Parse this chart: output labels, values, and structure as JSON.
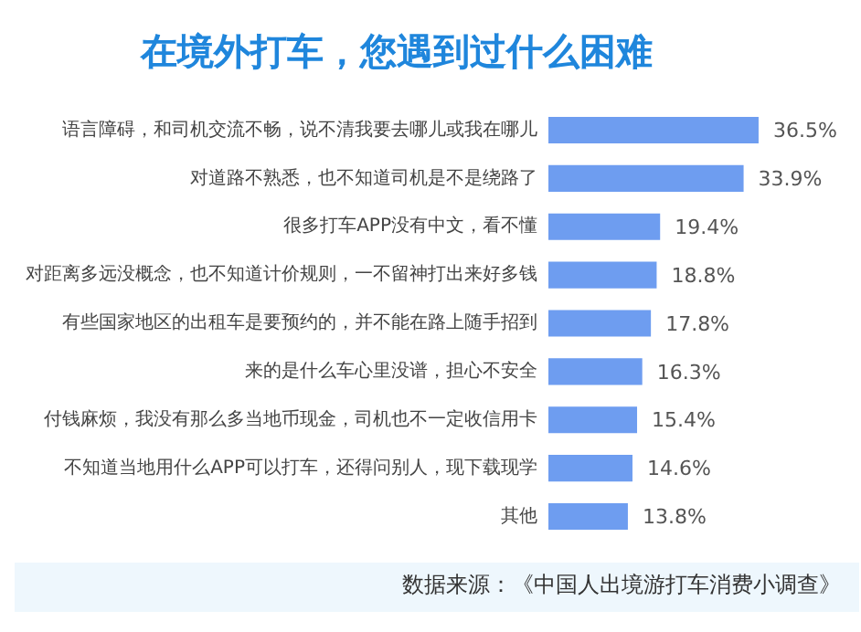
{
  "chart_data": {
    "type": "bar",
    "orientation": "horizontal",
    "title": "在境外打车，您遇到过什么困难",
    "categories": [
      "语言障碍，和司机交流不畅，说不清我要去哪儿或我在哪儿",
      "对道路不熟悉，也不知道司机是不是绕路了",
      "很多打车APP没有中文，看不懂",
      "对距离多远没概念，也不知道计价规则，一不留神打出来好多钱",
      "有些国家地区的出租车是要预约的，并不能在路上随手招到",
      "来的是什么车心里没谱，担心不安全",
      "付钱麻烦，我没有那么多当地币现金，司机也不一定收信用卡",
      "不知道当地用什么APP可以打车，还得问别人，现下载现学",
      "其他"
    ],
    "values": [
      36.5,
      33.9,
      19.4,
      18.8,
      17.8,
      16.3,
      15.4,
      14.6,
      13.8
    ],
    "value_labels": [
      "36.5%",
      "33.9%",
      "19.4%",
      "18.8%",
      "17.8%",
      "16.3%",
      "15.4%",
      "14.6%",
      "13.8%"
    ],
    "color": "#6e9df0",
    "grid": false,
    "legend": false,
    "tick_labels": "y",
    "annotations": [
      "数据来源：《中国人出境游打车消费小调查》"
    ]
  }
}
